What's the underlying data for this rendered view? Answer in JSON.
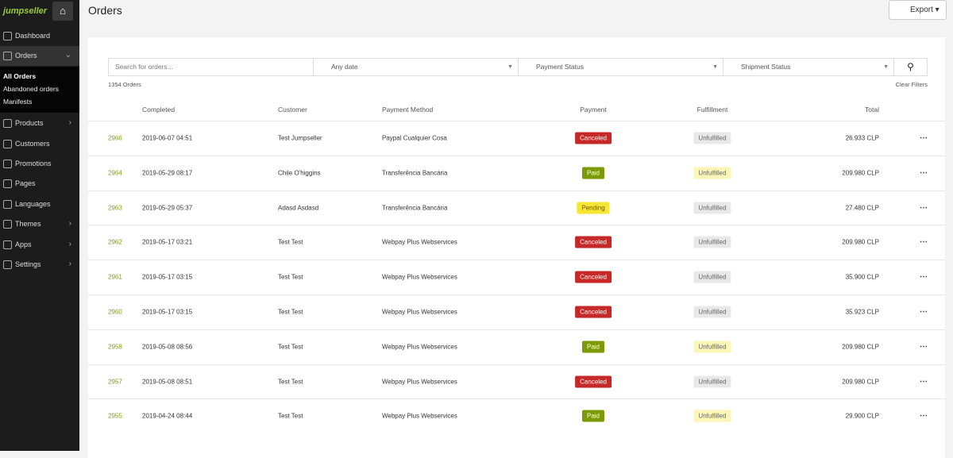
{
  "sidebar": {
    "logo": "jumpseller",
    "nav": [
      "Dashboard",
      "Orders",
      "Products",
      "Customers",
      "Promotions",
      "Pages",
      "Languages",
      "Themes",
      "Apps",
      "Settings"
    ],
    "submenu": [
      "All Orders",
      "Abandoned orders",
      "Manifests"
    ]
  },
  "header": {
    "title": "Orders",
    "export": "Export"
  },
  "filters": {
    "search_placeholder": "Search for orders...",
    "date": "Any date",
    "payment": "Payment Status",
    "shipment": "Shipment Status"
  },
  "summary": {
    "count": "1354 Orders",
    "clear": "Clear Filters"
  },
  "table": {
    "columns": [
      "Completed",
      "Customer",
      "Payment Method",
      "Payment",
      "Fulfillment",
      "Total"
    ],
    "rows": [
      {
        "cells": [
          "2966",
          "2019-06-07 04:51",
          "Test Jumpseller",
          "Paypal Cualquier Cosa",
          "Canceled",
          "Unfulfilled",
          "26.933 CLP"
        ],
        "payment_color": "#c62828",
        "payment_text_color": "#ffffff",
        "fulfillment_color": "#e8e8e8"
      },
      {
        "cells": [
          "2964",
          "2019-05-29 08:17",
          "Chile O'higgins",
          "Transferência Bancária",
          "Paid",
          "Unfulfilled",
          "209.980 CLP"
        ],
        "payment_color": "#7c9a06",
        "payment_text_color": "#ffffff",
        "fulfillment_color": "#fbf6b8"
      },
      {
        "cells": [
          "2963",
          "2019-05-29 05:37",
          "Adasd Asdasd",
          "Transferência Bancária",
          "Pending",
          "Unfulfilled",
          "27.480 CLP"
        ],
        "payment_color": "#f6e533",
        "payment_text_color": "#6b5e00",
        "fulfillment_color": "#e8e8e8"
      },
      {
        "cells": [
          "2962",
          "2019-05-17 03:21",
          "Test Test",
          "Webpay Plus Webservices",
          "Canceled",
          "Unfulfilled",
          "209.980 CLP"
        ],
        "payment_color": "#c62828",
        "payment_text_color": "#ffffff",
        "fulfillment_color": "#e8e8e8"
      },
      {
        "cells": [
          "2961",
          "2019-05-17 03:15",
          "Test Test",
          "Webpay Plus Webservices",
          "Canceled",
          "Unfulfilled",
          "35.900 CLP"
        ],
        "payment_color": "#c62828",
        "payment_text_color": "#ffffff",
        "fulfillment_color": "#e8e8e8"
      },
      {
        "cells": [
          "2960",
          "2019-05-17 03:15",
          "Test Test",
          "Webpay Plus Webservices",
          "Canceled",
          "Unfulfilled",
          "35.923 CLP"
        ],
        "payment_color": "#c62828",
        "payment_text_color": "#ffffff",
        "fulfillment_color": "#e8e8e8"
      },
      {
        "cells": [
          "2958",
          "2019-05-08 08:56",
          "Test Test",
          "Webpay Plus Webservices",
          "Paid",
          "Unfulfilled",
          "209.980 CLP"
        ],
        "payment_color": "#7c9a06",
        "payment_text_color": "#ffffff",
        "fulfillment_color": "#fbf6b8"
      },
      {
        "cells": [
          "2957",
          "2019-05-08 08:51",
          "Test Test",
          "Webpay Plus Webservices",
          "Canceled",
          "Unfulfilled",
          "209.980 CLP"
        ],
        "payment_color": "#c62828",
        "payment_text_color": "#ffffff",
        "fulfillment_color": "#e8e8e8"
      },
      {
        "cells": [
          "2955",
          "2019-04-24 08:44",
          "Test Test",
          "Webpay Plus Webservices",
          "Paid",
          "Unfulfilled",
          "29.900 CLP"
        ],
        "payment_color": "#7c9a06",
        "payment_text_color": "#ffffff",
        "fulfillment_color": "#fbf6b8"
      }
    ]
  }
}
